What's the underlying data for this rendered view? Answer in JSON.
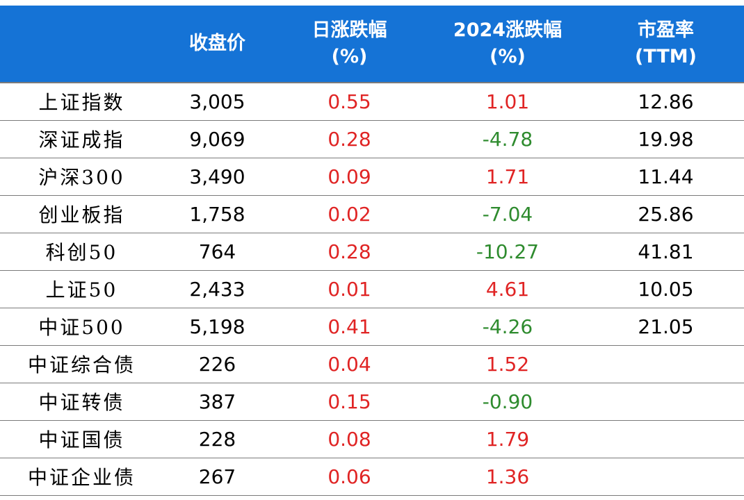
{
  "columns": [
    {
      "key": "name",
      "line1": "",
      "line2": ""
    },
    {
      "key": "close",
      "line1": "收盘价",
      "line2": ""
    },
    {
      "key": "daily",
      "line1": "日涨跌幅",
      "line2": "(%)"
    },
    {
      "key": "ytd",
      "line1": "2024涨跌幅",
      "line2": "(%)"
    },
    {
      "key": "pe",
      "line1": "市盈率",
      "line2": "(TTM)"
    }
  ],
  "rows": [
    {
      "name": "上证指数",
      "close": "3,005",
      "daily": "0.55",
      "ytd": "1.01",
      "pe": "12.86"
    },
    {
      "name": "深证成指",
      "close": "9,069",
      "daily": "0.28",
      "ytd": "-4.78",
      "pe": "19.98"
    },
    {
      "name": "沪深300",
      "close": "3,490",
      "daily": "0.09",
      "ytd": "1.71",
      "pe": "11.44"
    },
    {
      "name": "创业板指",
      "close": "1,758",
      "daily": "0.02",
      "ytd": "-7.04",
      "pe": "25.86"
    },
    {
      "name": "科创50",
      "close": "764",
      "daily": "0.28",
      "ytd": "-10.27",
      "pe": "41.81"
    },
    {
      "name": "上证50",
      "close": "2,433",
      "daily": "0.01",
      "ytd": "4.61",
      "pe": "10.05"
    },
    {
      "name": "中证500",
      "close": "5,198",
      "daily": "0.41",
      "ytd": "-4.26",
      "pe": "21.05"
    },
    {
      "name": "中证综合债",
      "close": "226",
      "daily": "0.04",
      "ytd": "1.52",
      "pe": ""
    },
    {
      "name": "中证转债",
      "close": "387",
      "daily": "0.15",
      "ytd": "-0.90",
      "pe": ""
    },
    {
      "name": "中证国债",
      "close": "228",
      "daily": "0.08",
      "ytd": "1.79",
      "pe": ""
    },
    {
      "name": "中证企业债",
      "close": "267",
      "daily": "0.06",
      "ytd": "1.36",
      "pe": ""
    }
  ],
  "colors": {
    "header_bg": "#1573d6",
    "header_text": "#ffffff",
    "positive": "#e02424",
    "negative": "#2e8b2e",
    "neutral": "#000000"
  }
}
